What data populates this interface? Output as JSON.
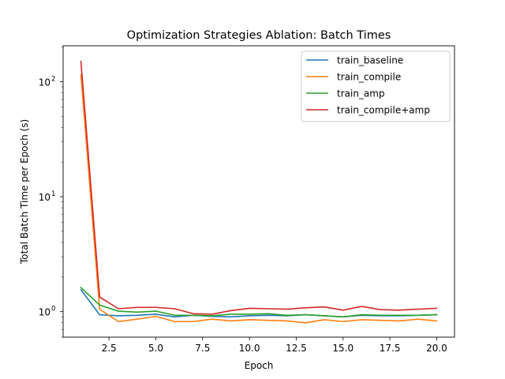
{
  "chart_data": {
    "type": "line",
    "title": "Optimization Strategies Ablation: Batch Times",
    "xlabel": "Epoch",
    "ylabel": "Total Batch Time per Epoch (s)",
    "yscale": "log",
    "xlim": [
      0.05,
      20.95
    ],
    "ylim": [
      0.6,
      205
    ],
    "xticks": [
      2.5,
      5.0,
      7.5,
      10.0,
      12.5,
      15.0,
      17.5,
      20.0
    ],
    "xtick_labels": [
      "2.5",
      "5.0",
      "7.5",
      "10.0",
      "12.5",
      "15.0",
      "17.5",
      "20.0"
    ],
    "yticks": [
      1,
      10,
      100
    ],
    "ytick_labels": [
      "10",
      "10",
      "10"
    ],
    "ytick_exponents": [
      "0",
      "1",
      "2"
    ],
    "grid": false,
    "legend_position": "upper right",
    "x": [
      1,
      2,
      3,
      4,
      5,
      6,
      7,
      8,
      9,
      10,
      11,
      12,
      13,
      14,
      15,
      16,
      17,
      18,
      19,
      20
    ],
    "series": [
      {
        "name": "train_baseline",
        "color": "#1f77b4",
        "values": [
          1.55,
          0.94,
          0.92,
          0.93,
          0.95,
          0.9,
          0.93,
          0.91,
          0.9,
          0.92,
          0.93,
          0.92,
          0.94,
          0.92,
          0.9,
          0.93,
          0.92,
          0.92,
          0.93,
          0.94
        ]
      },
      {
        "name": "train_compile",
        "color": "#ff7f0e",
        "values": [
          115,
          1.05,
          0.82,
          0.86,
          0.91,
          0.82,
          0.82,
          0.86,
          0.83,
          0.85,
          0.84,
          0.83,
          0.8,
          0.85,
          0.82,
          0.85,
          0.84,
          0.83,
          0.86,
          0.83
        ]
      },
      {
        "name": "train_amp",
        "color": "#2ca02c",
        "values": [
          1.62,
          1.14,
          1.01,
          0.99,
          1.01,
          0.93,
          0.93,
          0.92,
          0.95,
          0.95,
          0.96,
          0.93,
          0.94,
          0.92,
          0.9,
          0.94,
          0.93,
          0.93,
          0.93,
          0.94
        ]
      },
      {
        "name": "train_compile+amp",
        "color": "#d62728",
        "values": [
          150,
          1.34,
          1.06,
          1.09,
          1.09,
          1.06,
          0.96,
          0.95,
          1.02,
          1.07,
          1.06,
          1.05,
          1.08,
          1.1,
          1.03,
          1.11,
          1.04,
          1.03,
          1.05,
          1.07
        ]
      }
    ]
  }
}
